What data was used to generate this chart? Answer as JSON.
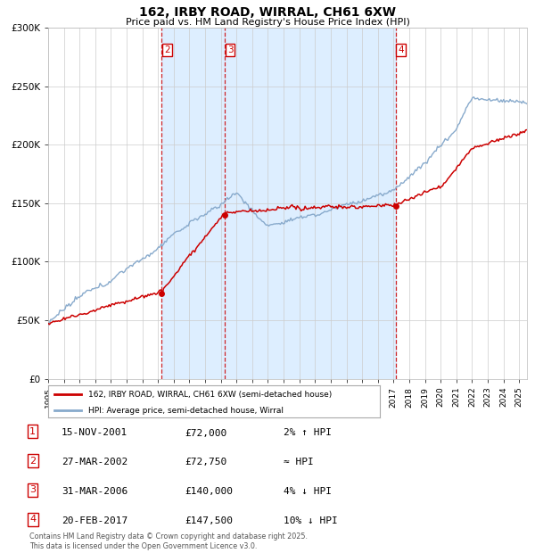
{
  "title": "162, IRBY ROAD, WIRRAL, CH61 6XW",
  "subtitle": "Price paid vs. HM Land Registry's House Price Index (HPI)",
  "line1_color": "#cc0000",
  "line2_color": "#88aacc",
  "marker_color": "#cc0000",
  "shade_color": "#ddeeff",
  "grid_color": "#cccccc",
  "sale_dates": [
    2001.876,
    2002.236,
    2006.247,
    2017.127
  ],
  "sale_prices": [
    72000,
    72750,
    140000,
    147500
  ],
  "dashed_lines": [
    2002.236,
    2006.247,
    2017.127
  ],
  "dashed_label_text": [
    "2",
    "3",
    "4"
  ],
  "ylim": [
    0,
    300000
  ],
  "xlim": [
    1995.0,
    2025.5
  ],
  "yticks": [
    0,
    50000,
    100000,
    150000,
    200000,
    250000,
    300000
  ],
  "ytick_labels": [
    "£0",
    "£50K",
    "£100K",
    "£150K",
    "£200K",
    "£250K",
    "£300K"
  ],
  "xticks": [
    1995,
    1996,
    1997,
    1998,
    1999,
    2000,
    2001,
    2002,
    2003,
    2004,
    2005,
    2006,
    2007,
    2008,
    2009,
    2010,
    2011,
    2012,
    2013,
    2014,
    2015,
    2016,
    2017,
    2018,
    2019,
    2020,
    2021,
    2022,
    2023,
    2024,
    2025
  ],
  "legend1_label": "162, IRBY ROAD, WIRRAL, CH61 6XW (semi-detached house)",
  "legend2_label": "HPI: Average price, semi-detached house, Wirral",
  "table_rows": [
    [
      "1",
      "15-NOV-2001",
      "£72,000",
      "2% ↑ HPI"
    ],
    [
      "2",
      "27-MAR-2002",
      "£72,750",
      "≈ HPI"
    ],
    [
      "3",
      "31-MAR-2006",
      "£140,000",
      "4% ↓ HPI"
    ],
    [
      "4",
      "20-FEB-2017",
      "£147,500",
      "10% ↓ HPI"
    ]
  ],
  "footer": "Contains HM Land Registry data © Crown copyright and database right 2025.\nThis data is licensed under the Open Government Licence v3.0."
}
